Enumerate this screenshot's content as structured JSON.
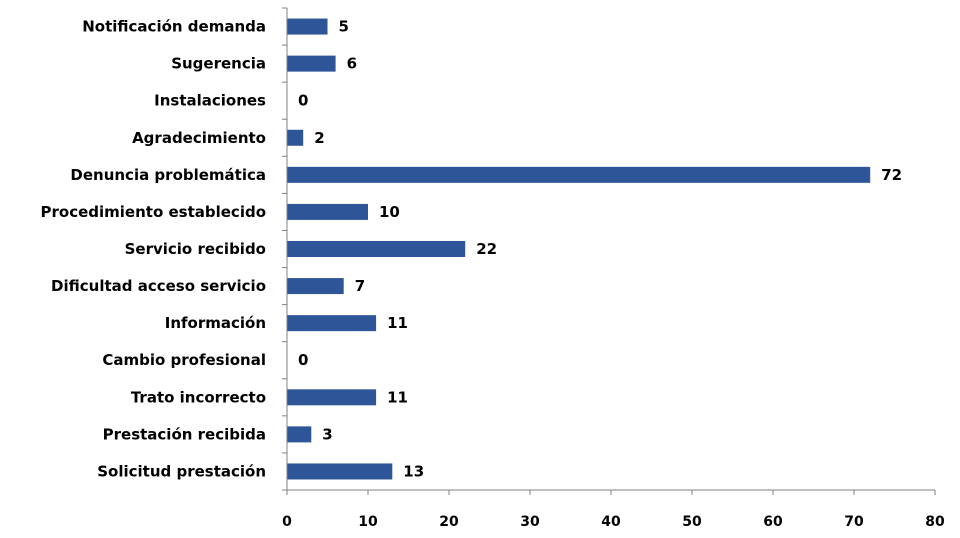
{
  "chart_data": {
    "type": "bar",
    "orientation": "horizontal",
    "categories": [
      "Notificación demanda",
      "Sugerencia",
      "Instalaciones",
      "Agradecimiento",
      "Denuncia problemática",
      "Procedimiento establecido",
      "Servicio recibido",
      "Dificultad acceso servicio",
      "Información",
      "Cambio profesional",
      "Trato incorrecto",
      "Prestación recibida",
      "Solicitud prestación"
    ],
    "values": [
      5,
      6,
      0,
      2,
      72,
      10,
      22,
      7,
      11,
      0,
      11,
      3,
      13
    ],
    "value_labels": [
      "5",
      "6",
      "0",
      "2",
      "72",
      "10",
      "22",
      "7",
      "11",
      "0",
      "11",
      "3",
      "13"
    ],
    "xlim": [
      0,
      80
    ],
    "x_ticks": [
      "0",
      "10",
      "20",
      "30",
      "40",
      "50",
      "60",
      "70",
      "80"
    ],
    "title": "",
    "xlabel": "",
    "ylabel": "",
    "grid": false,
    "legend": "none",
    "bar_color": "#2E5597"
  }
}
